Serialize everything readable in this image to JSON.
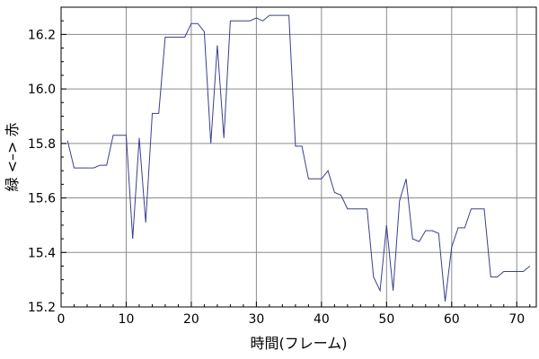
{
  "chart_data": {
    "type": "line",
    "title": "",
    "xlabel": "時間(フレーム)",
    "ylabel": "緑 <–> 赤",
    "xlim": [
      0,
      73
    ],
    "ylim": [
      15.2,
      16.3
    ],
    "xticks": [
      0,
      10,
      20,
      30,
      40,
      50,
      60,
      70
    ],
    "yticks": [
      15.2,
      15.4,
      15.6,
      15.8,
      16.0,
      16.2
    ],
    "xtick_labels": [
      "0",
      "10",
      "20",
      "30",
      "40",
      "50",
      "60",
      "70"
    ],
    "ytick_labels": [
      "15.2",
      "15.4",
      "15.6",
      "15.8",
      "16.0",
      "16.2"
    ],
    "grid": true,
    "series": [
      {
        "color": "#3b3f8f",
        "x": [
          1,
          2,
          3,
          4,
          5,
          6,
          7,
          8,
          9,
          10,
          11,
          12,
          13,
          14,
          15,
          16,
          17,
          18,
          19,
          20,
          21,
          22,
          23,
          24,
          25,
          26,
          27,
          28,
          29,
          30,
          31,
          32,
          33,
          34,
          35,
          36,
          37,
          38,
          39,
          40,
          41,
          42,
          43,
          44,
          45,
          46,
          47,
          48,
          49,
          50,
          51,
          52,
          53,
          54,
          55,
          56,
          57,
          58,
          59,
          60,
          61,
          62,
          63,
          64,
          65,
          66,
          67,
          68,
          69,
          70,
          71,
          72
        ],
        "y": [
          15.81,
          15.71,
          15.71,
          15.71,
          15.71,
          15.72,
          15.72,
          15.83,
          15.83,
          15.83,
          15.45,
          15.82,
          15.51,
          15.91,
          15.91,
          16.19,
          16.19,
          16.19,
          16.19,
          16.24,
          16.24,
          16.21,
          15.8,
          16.16,
          15.82,
          16.25,
          16.25,
          16.25,
          16.25,
          16.26,
          16.25,
          16.27,
          16.27,
          16.27,
          16.27,
          15.79,
          15.79,
          15.67,
          15.67,
          15.67,
          15.7,
          15.62,
          15.61,
          15.56,
          15.56,
          15.56,
          15.56,
          15.31,
          15.26,
          15.5,
          15.26,
          15.59,
          15.67,
          15.45,
          15.44,
          15.48,
          15.48,
          15.47,
          15.22,
          15.42,
          15.49,
          15.49,
          15.56,
          15.56,
          15.56,
          15.31,
          15.31,
          15.33,
          15.33,
          15.33,
          15.33,
          15.35
        ]
      }
    ]
  }
}
